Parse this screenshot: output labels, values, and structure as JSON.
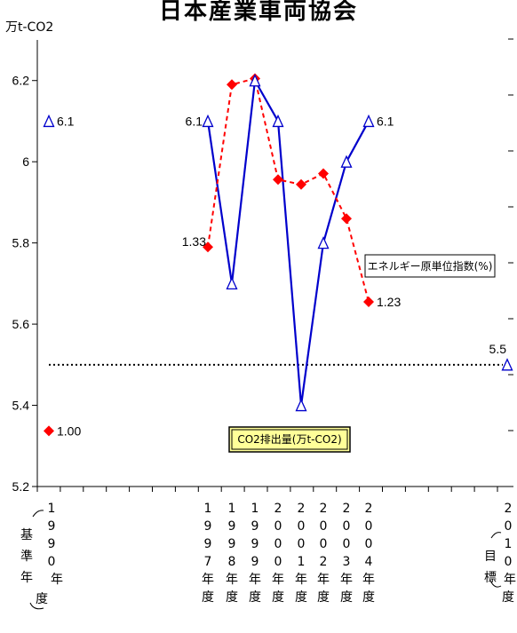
{
  "chart_data": {
    "type": "line",
    "title": "日本産業車両協会",
    "unit_label": "万t-CO2",
    "ylim": [
      5.2,
      6.3
    ],
    "y_ticks": [
      "5.2",
      "5.4",
      "5.6",
      "5.8",
      "6",
      "6.2"
    ],
    "grid": false,
    "x_labels": [
      "1990年度（基準年）",
      "1997年度",
      "1998年度",
      "1999年度",
      "2000年度",
      "2001年度",
      "2002年度",
      "2003年度",
      "2004年度",
      "2010年度（目標年）"
    ],
    "series": [
      {
        "name": "CO2排出量(万t-CO2)",
        "color": "#0000cc",
        "points": [
          [
            "1990",
            6.1
          ],
          [
            "1997",
            6.1
          ],
          [
            "1998",
            5.7
          ],
          [
            "1999",
            6.2
          ],
          [
            "2000",
            6.1
          ],
          [
            "2001",
            5.4
          ],
          [
            "2002",
            5.8
          ],
          [
            "2003",
            6.0
          ],
          [
            "2004",
            6.1
          ],
          [
            "2010",
            5.5
          ]
        ]
      },
      {
        "name": "エネルギー原単位指数(%)",
        "color": "#ff0000",
        "points": [
          [
            "1990",
            5.337
          ],
          [
            "1997",
            5.79
          ],
          [
            "1998",
            6.19
          ],
          [
            "1999",
            6.205
          ],
          [
            "2000",
            5.956
          ],
          [
            "2001",
            5.944
          ],
          [
            "2002",
            5.971
          ],
          [
            "2003",
            5.86
          ],
          [
            "2004",
            5.655
          ]
        ]
      }
    ],
    "target_line": 5.5,
    "data_labels": {
      "co2_1990": "6.1",
      "co2_1997": "6.1",
      "co2_2004": "6.1",
      "co2_2010": "5.5",
      "energy_1990": "1.00",
      "energy_1997": "1.33",
      "energy_2004": "1.23"
    },
    "legend_co2": "CO2排出量(万t-CO2)",
    "legend_energy": "エネルギー原単位指数(%)",
    "x_columns": [
      {
        "key": "1990",
        "chars": [
          "1",
          "9",
          "9",
          "0",
          "年"
        ]
      },
      {
        "key": "1997",
        "chars": [
          "1",
          "9",
          "9",
          "7",
          "年",
          "度"
        ]
      },
      {
        "key": "1998",
        "chars": [
          "1",
          "9",
          "9",
          "8",
          "年",
          "度"
        ]
      },
      {
        "key": "1999",
        "chars": [
          "1",
          "9",
          "9",
          "9",
          "年",
          "度"
        ]
      },
      {
        "key": "2000",
        "chars": [
          "2",
          "0",
          "0",
          "0",
          "年",
          "度"
        ]
      },
      {
        "key": "2001",
        "chars": [
          "2",
          "0",
          "0",
          "1",
          "年",
          "度"
        ]
      },
      {
        "key": "2002",
        "chars": [
          "2",
          "0",
          "0",
          "2",
          "年",
          "度"
        ]
      },
      {
        "key": "2003",
        "chars": [
          "2",
          "0",
          "0",
          "3",
          "年",
          "度"
        ]
      },
      {
        "key": "2004",
        "chars": [
          "2",
          "0",
          "0",
          "4",
          "年",
          "度"
        ]
      },
      {
        "key": "2010",
        "chars": [
          "2",
          "0",
          "1",
          "0",
          "年",
          "度"
        ]
      }
    ],
    "x_side_labels": {
      "base": [
        "基",
        "準",
        "年",
        "度"
      ],
      "target": [
        "目",
        "標"
      ]
    }
  }
}
